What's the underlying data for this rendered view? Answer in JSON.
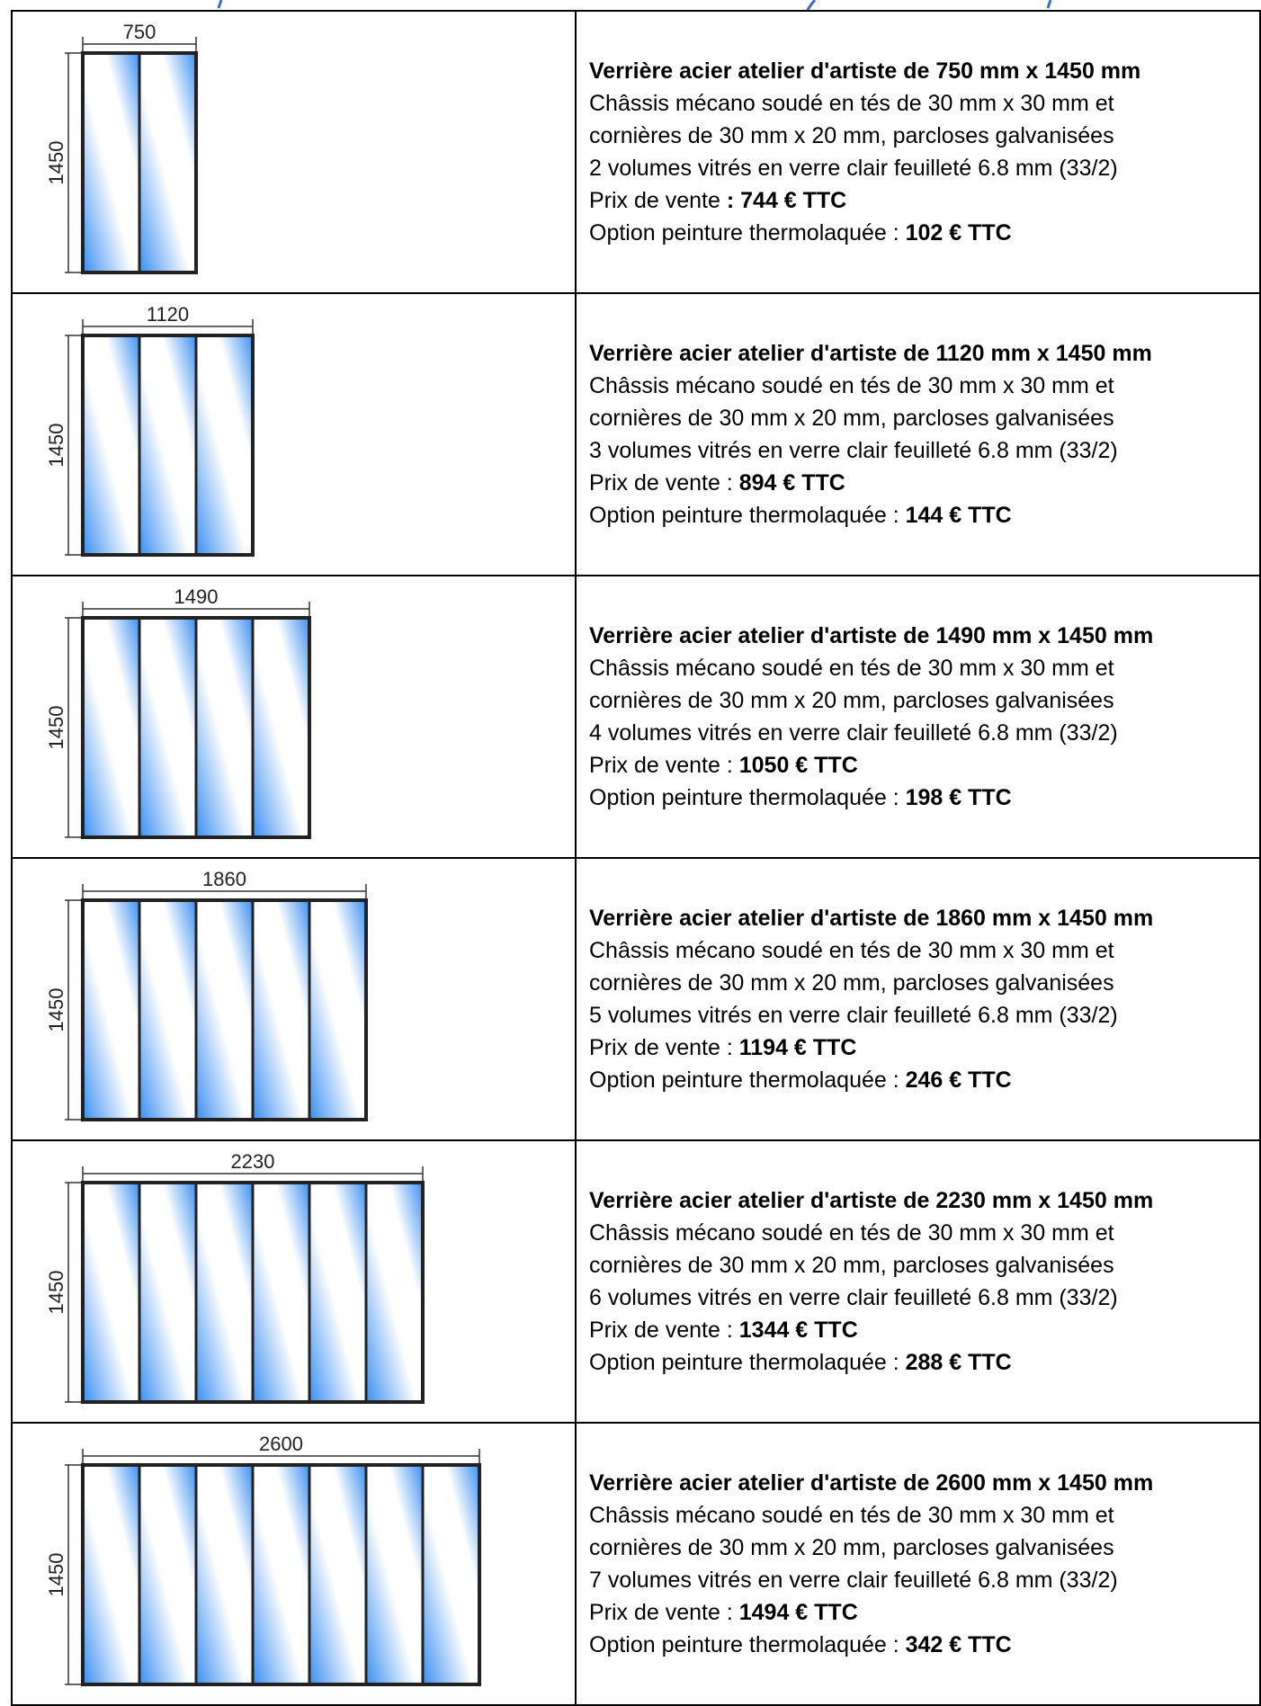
{
  "colors": {
    "frame": "#222222",
    "glass_light": "#ffffff",
    "glass_blue": "#3b8ff0",
    "heading_blue": "#3a6dc4"
  },
  "products": [
    {
      "width_label": "750",
      "height_label": "1450",
      "panes": 2,
      "title": "Verrière acier atelier d'artiste de 750 mm x 1450 mm",
      "line1": "Châssis mécano soudé en tés de 30 mm x 30 mm et",
      "line2": "cornières de 30 mm x 20 mm, parcloses galvanisées",
      "line3": "2 volumes vitrés en verre clair feuilleté 6.8 mm (33/2)",
      "price_label": "Prix de vente ",
      "price_value": ": 744 € TTC",
      "option_label": "Option peinture thermolaquée : ",
      "option_value": "102 € TTC"
    },
    {
      "width_label": "1120",
      "height_label": "1450",
      "panes": 3,
      "title": "Verrière acier atelier d'artiste de 1120 mm x 1450 mm",
      "line1": "Châssis mécano soudé en tés de 30 mm x 30 mm et",
      "line2": "cornières de 30 mm x 20 mm, parcloses galvanisées",
      "line3": "3 volumes vitrés en verre clair feuilleté 6.8 mm (33/2)",
      "price_label": "Prix de vente : ",
      "price_value": "894 € TTC",
      "option_label": "Option peinture thermolaquée : ",
      "option_value": "144 € TTC"
    },
    {
      "width_label": "1490",
      "height_label": "1450",
      "panes": 4,
      "title": "Verrière acier atelier d'artiste de 1490 mm x 1450 mm",
      "line1": "Châssis mécano soudé en tés de 30 mm x 30 mm et",
      "line2": "cornières de 30 mm x 20 mm, parcloses galvanisées",
      "line3": "4 volumes vitrés en verre clair feuilleté 6.8 mm (33/2)",
      "price_label": "Prix de vente : ",
      "price_value": "1050 € TTC",
      "option_label": "Option peinture thermolaquée : ",
      "option_value": "198 € TTC"
    },
    {
      "width_label": "1860",
      "height_label": "1450",
      "panes": 5,
      "title": "Verrière acier atelier d'artiste de 1860 mm x 1450 mm",
      "line1": "Châssis mécano soudé en tés de 30 mm x 30 mm et",
      "line2": "cornières de 30 mm x 20 mm, parcloses galvanisées",
      "line3": "5 volumes vitrés en verre clair feuilleté 6.8 mm (33/2)",
      "price_label": "Prix de vente : ",
      "price_value": "1194 € TTC",
      "option_label": "Option peinture thermolaquée : ",
      "option_value": "246 € TTC"
    },
    {
      "width_label": "2230",
      "height_label": "1450",
      "panes": 6,
      "title": "Verrière acier atelier d'artiste de 2230 mm x 1450 mm",
      "line1": "Châssis mécano soudé en tés de 30 mm x 30 mm et",
      "line2": "cornières de 30 mm x 20 mm, parcloses galvanisées",
      "line3": "6 volumes vitrés en verre clair feuilleté 6.8 mm (33/2)",
      "price_label": "Prix de vente : ",
      "price_value": "1344 € TTC",
      "option_label": "Option peinture thermolaquée : ",
      "option_value": "288 € TTC"
    },
    {
      "width_label": "2600",
      "height_label": "1450",
      "panes": 7,
      "title": "Verrière acier atelier d'artiste de 2600 mm x 1450 mm",
      "line1": "Châssis mécano soudé en tés de 30 mm x 30 mm et",
      "line2": "cornières de 30 mm x 20 mm, parcloses galvanisées",
      "line3": "7 volumes vitrés en verre clair feuilleté 6.8 mm (33/2)",
      "price_label": "Prix de vente : ",
      "price_value": "1494 € TTC",
      "option_label": "Option peinture thermolaquée : ",
      "option_value": "342 € TTC"
    }
  ]
}
